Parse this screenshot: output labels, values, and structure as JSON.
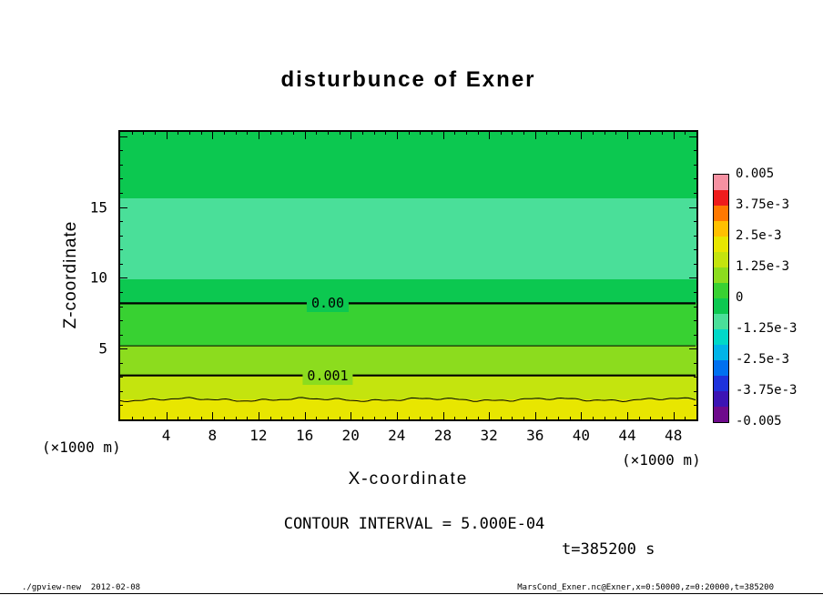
{
  "title": "disturbunce of Exner",
  "axes": {
    "x_label": "X-coordinate",
    "y_label": "Z-coordinate",
    "unit_left": "(×1000 m)",
    "unit_right": "(×1000 m)",
    "x_ticks": [
      4,
      8,
      12,
      16,
      20,
      24,
      28,
      32,
      36,
      40,
      44,
      48
    ],
    "y_ticks": [
      5,
      10,
      15
    ]
  },
  "chart_data": {
    "type": "heatmap",
    "title": "disturbunce of Exner",
    "xlabel": "X-coordinate (×1000 m)",
    "ylabel": "Z-coordinate (×1000 m)",
    "xlim": [
      0,
      50
    ],
    "ylim": [
      0,
      20.3
    ],
    "contour_interval": 0.0005,
    "bands": [
      {
        "z_top": 20.3,
        "z_bottom": 15.6,
        "value_range": [
          -0.000625,
          0
        ],
        "color": "#0cc850"
      },
      {
        "z_top": 15.6,
        "z_bottom": 9.9,
        "value_range": [
          -0.00125,
          -0.000625
        ],
        "color": "#4adf99"
      },
      {
        "z_top": 9.9,
        "z_bottom": 8.2,
        "value_range": [
          -0.000625,
          0
        ],
        "color": "#0cc850"
      },
      {
        "z_top": 8.2,
        "z_bottom": 5.2,
        "value_range": [
          0,
          0.0005
        ],
        "color": "#38d132"
      },
      {
        "z_top": 5.2,
        "z_bottom": 3.1,
        "value_range": [
          0.0005,
          0.001
        ],
        "color": "#8cdc1e"
      },
      {
        "z_top": 3.1,
        "z_bottom": 1.4,
        "value_range": [
          0.001,
          0.0015
        ],
        "color": "#c4e40e"
      },
      {
        "z_top": 1.4,
        "z_bottom": 0,
        "value_range": [
          0.0015,
          0.002
        ],
        "color": "#e8e600"
      }
    ],
    "contours": [
      {
        "z": 8.2,
        "value": 0,
        "label": "0.00",
        "thick": true,
        "wiggly": false,
        "label_bg": "#0cc850"
      },
      {
        "z": 5.2,
        "value": 0.0005,
        "label": null,
        "thick": false,
        "wiggly": false,
        "label_bg": null
      },
      {
        "z": 3.1,
        "value": 0.001,
        "label": "0.001",
        "thick": true,
        "wiggly": false,
        "label_bg": "#8cdc1e"
      },
      {
        "z": 1.4,
        "value": 0.0015,
        "label": null,
        "thick": false,
        "wiggly": true,
        "label_bg": null
      }
    ]
  },
  "colorbar": {
    "labels": [
      "0.005",
      "3.75e-3",
      "2.5e-3",
      "1.25e-3",
      "0",
      "-1.25e-3",
      "-2.5e-3",
      "-3.75e-3",
      "-0.005"
    ],
    "colors": [
      "#f591a2",
      "#ee1c1c",
      "#ff7800",
      "#ffc000",
      "#e8e600",
      "#c4e40e",
      "#8cdc1e",
      "#38d132",
      "#0cc850",
      "#4adf99",
      "#00d8c8",
      "#00b4e8",
      "#0070f0",
      "#1e32dc",
      "#3c14b4",
      "#6e0a8c"
    ]
  },
  "annotations": {
    "contour_interval": "CONTOUR INTERVAL = 5.000E-04",
    "time": "t=385200 s"
  },
  "footer": {
    "left": "./gpview-new  2012-02-08",
    "right": "MarsCond_Exner.nc@Exner,x=0:50000,z=0:20000,t=385200"
  }
}
